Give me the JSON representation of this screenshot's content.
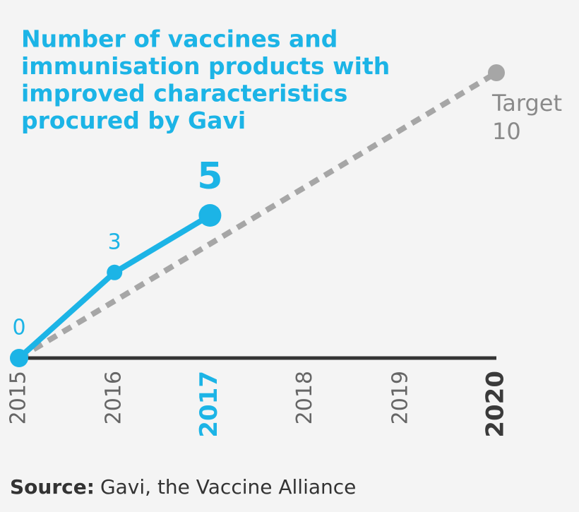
{
  "chart_data": {
    "type": "line",
    "title": [
      "Number of vaccines and",
      "immunisation products with",
      "improved characteristics",
      "procured by Gavi"
    ],
    "categories": [
      "2015",
      "2016",
      "2017",
      "2018",
      "2019",
      "2020"
    ],
    "series": [
      {
        "color": "#1cb4e6",
        "values": [
          0,
          3,
          5,
          null,
          null,
          null
        ]
      },
      {
        "name": "Target",
        "color": "#a6a6a6",
        "dashed": true,
        "values": [
          0,
          2,
          4,
          6,
          8,
          10
        ]
      }
    ],
    "ylim": [
      0,
      10
    ],
    "source": {
      "label": "Source:",
      "text": "Gavi, the Vaccine Alliance"
    }
  }
}
